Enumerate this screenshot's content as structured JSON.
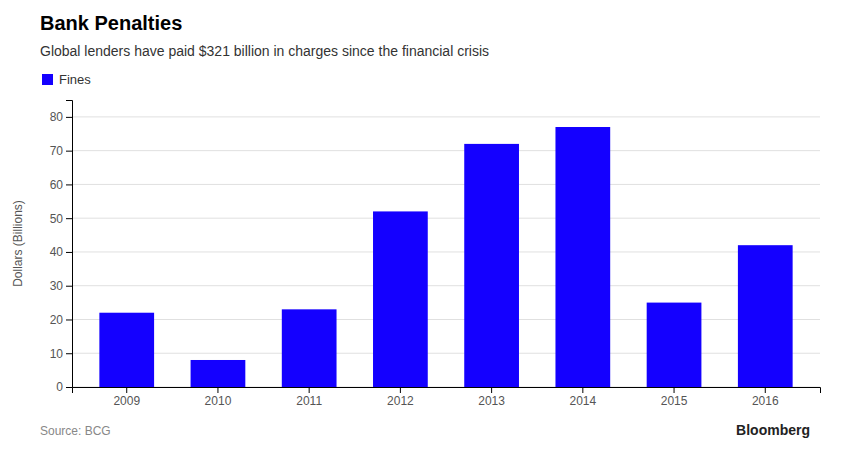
{
  "chart_data": {
    "type": "bar",
    "title": "Bank Penalties",
    "subtitle": "Global lenders have paid $321 billion in charges since the financial crisis",
    "categories": [
      "2009",
      "2010",
      "2011",
      "2012",
      "2013",
      "2014",
      "2015",
      "2016"
    ],
    "series": [
      {
        "name": "Fines",
        "color": "#1400FF",
        "values": [
          22,
          8,
          23,
          52,
          72,
          77,
          25,
          42
        ]
      }
    ],
    "ylabel": "Dollars (Billions)",
    "ylim": [
      0,
      85
    ],
    "yticks": [
      0,
      10,
      20,
      30,
      40,
      50,
      60,
      70,
      80
    ],
    "grid": true,
    "legend": "top-left",
    "annotations": [
      "Source: BCG",
      "Bloomberg"
    ]
  }
}
